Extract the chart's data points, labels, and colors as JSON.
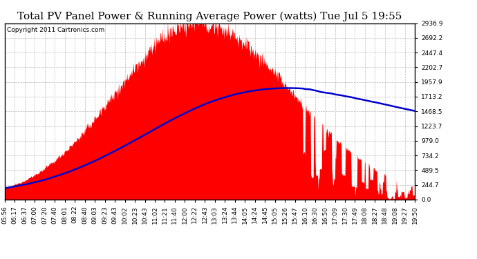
{
  "title": "Total PV Panel Power & Running Average Power (watts) Tue Jul 5 19:55",
  "copyright": "Copyright 2011 Cartronics.com",
  "y_ticks": [
    0.0,
    244.7,
    489.5,
    734.2,
    979.0,
    1223.7,
    1468.5,
    1713.2,
    1957.9,
    2202.7,
    2447.4,
    2692.2,
    2936.9
  ],
  "x_tick_labels": [
    "05:56",
    "06:17",
    "06:37",
    "07:00",
    "07:20",
    "07:40",
    "08:01",
    "08:22",
    "08:40",
    "09:03",
    "09:23",
    "09:43",
    "10:02",
    "10:23",
    "10:43",
    "11:02",
    "11:21",
    "11:40",
    "12:00",
    "12:22",
    "12:43",
    "13:03",
    "13:24",
    "13:44",
    "14:05",
    "14:24",
    "14:45",
    "15:05",
    "15:26",
    "15:47",
    "16:10",
    "16:30",
    "16:50",
    "17:09",
    "17:30",
    "17:49",
    "18:08",
    "18:27",
    "18:48",
    "19:08",
    "19:27",
    "19:50"
  ],
  "fill_color": "#FF0000",
  "line_color": "#0000CC",
  "background_color": "#FFFFFF",
  "grid_color": "#BBBBBB",
  "title_fontsize": 11,
  "copyright_fontsize": 6.5,
  "tick_fontsize": 6.5,
  "y_max": 2936.9,
  "n_points": 840
}
